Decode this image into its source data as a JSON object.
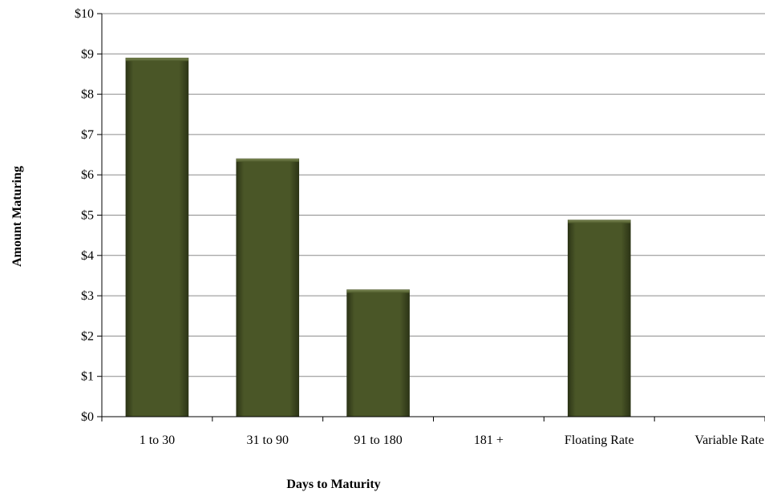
{
  "chart_data": {
    "type": "bar",
    "title": "",
    "xlabel": "Days to Maturity",
    "ylabel": "Amount Maturing",
    "categories": [
      "1 to 30",
      "31 to 90",
      "91 to 180",
      "181 +",
      "Floating Rate",
      "Variable Rate"
    ],
    "values": [
      8.9,
      6.4,
      3.15,
      0,
      4.88,
      0
    ],
    "ylim": [
      0,
      10
    ],
    "yticks": [
      "$0",
      "$1",
      "$2",
      "$3",
      "$4",
      "$5",
      "$6",
      "$7",
      "$8",
      "$9",
      "$10"
    ],
    "grid": true,
    "legend": "none",
    "bar_color": "#4a5627",
    "bar_highlight_color": "#7d8a55",
    "bar_shadow_color": "#2c3416"
  }
}
